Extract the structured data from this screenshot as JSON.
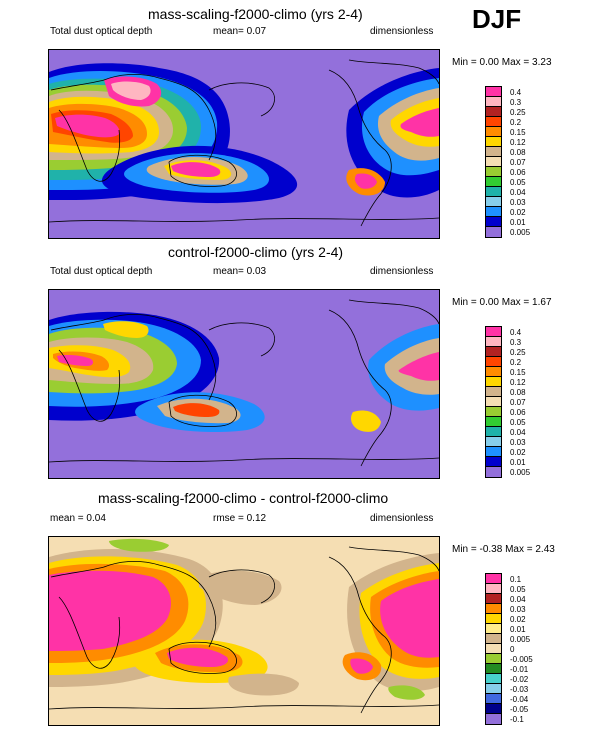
{
  "season": "DJF",
  "colors": {
    "pink": "#ff33a6",
    "lightpink": "#ffb6c1",
    "darkred": "#b22222",
    "red": "#ff4500",
    "orange": "#ff8c00",
    "yellow": "#ffd700",
    "tan": "#d2b48c",
    "lightgreen": "#9acd32",
    "green": "#32cd32",
    "teal": "#20b2aa",
    "lightblue": "#87ceeb",
    "blue": "#1e90ff",
    "darkblue": "#0000cd",
    "purple": "#9370db",
    "cream": "#f5deb3",
    "darkgreen": "#228b22",
    "cyan": "#48d1cc",
    "steelblue": "#4169e1",
    "navy": "#00008b"
  },
  "panels": [
    {
      "title": "mass-scaling-f2000-climo (yrs 2-4)",
      "left_label": "Total dust optical depth",
      "center_label": "mean=  0.07",
      "right_label": "dimensionless",
      "minmax": "Min =   0.00 Max =   3.23",
      "legend": [
        "0.4",
        "0.3",
        "0.25",
        "0.2",
        "0.15",
        "0.12",
        "0.08",
        "0.07",
        "0.06",
        "0.05",
        "0.04",
        "0.03",
        "0.02",
        "0.01",
        "0.005"
      ]
    },
    {
      "title": "control-f2000-climo (yrs 2-4)",
      "left_label": "Total dust optical depth",
      "center_label": "mean=  0.03",
      "right_label": "dimensionless",
      "minmax": "Min =   0.00 Max =   1.67",
      "legend": [
        "0.4",
        "0.3",
        "0.25",
        "0.2",
        "0.15",
        "0.12",
        "0.08",
        "0.07",
        "0.06",
        "0.05",
        "0.04",
        "0.03",
        "0.02",
        "0.01",
        "0.005"
      ]
    },
    {
      "title": "mass-scaling-f2000-climo - control-f2000-climo",
      "left_label": "mean =  0.04",
      "center_label": "rmse =  0.12",
      "right_label": "dimensionless",
      "minmax": "Min =  -0.38 Max =   2.43",
      "legend": [
        "0.1",
        "0.05",
        "0.04",
        "0.03",
        "0.02",
        "0.01",
        "0.005",
        "0",
        "-0.005",
        "-0.01",
        "-0.02",
        "-0.03",
        "-0.04",
        "-0.05",
        "-0.1"
      ]
    }
  ]
}
